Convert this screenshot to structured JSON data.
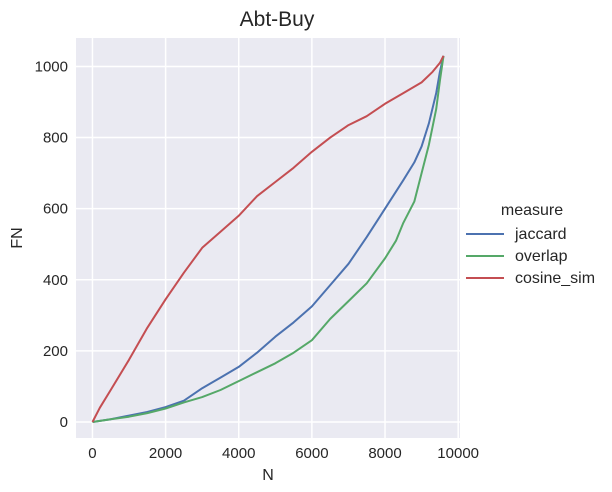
{
  "chart_data": {
    "type": "line",
    "title": "Abt-Buy",
    "xlabel": "N",
    "ylabel": "FN",
    "xlim": [
      -450,
      10050
    ],
    "ylim": [
      -45,
      1080
    ],
    "xticks": [
      0,
      2000,
      4000,
      6000,
      8000,
      10000
    ],
    "yticks": [
      0,
      200,
      400,
      600,
      800,
      1000
    ],
    "grid": true,
    "legend": {
      "title": "measure",
      "placement": "right"
    },
    "series": [
      {
        "name": "jaccard",
        "color": "#4c72b0",
        "x": [
          0,
          500,
          1000,
          1500,
          2000,
          2500,
          3000,
          3500,
          4000,
          4500,
          5000,
          5500,
          6000,
          6500,
          7000,
          7500,
          8000,
          8500,
          8800,
          9000,
          9200,
          9400,
          9500,
          9600
        ],
        "y": [
          0,
          8,
          18,
          28,
          42,
          60,
          95,
          125,
          155,
          195,
          240,
          280,
          325,
          385,
          445,
          520,
          600,
          680,
          730,
          775,
          840,
          925,
          985,
          1030
        ]
      },
      {
        "name": "overlap",
        "color": "#55a868",
        "x": [
          0,
          500,
          1000,
          1500,
          2000,
          2500,
          3000,
          3500,
          4000,
          4500,
          5000,
          5500,
          6000,
          6500,
          7000,
          7500,
          8000,
          8300,
          8500,
          8800,
          9000,
          9200,
          9400,
          9500,
          9600
        ],
        "y": [
          0,
          8,
          15,
          25,
          38,
          55,
          70,
          90,
          115,
          140,
          165,
          195,
          230,
          290,
          340,
          390,
          460,
          510,
          560,
          620,
          700,
          780,
          880,
          960,
          1030
        ]
      },
      {
        "name": "cosine_sim",
        "color": "#c44e52",
        "x": [
          0,
          200,
          500,
          1000,
          1500,
          2000,
          2500,
          3000,
          3500,
          4000,
          4500,
          5000,
          5500,
          6000,
          6500,
          7000,
          7500,
          8000,
          8500,
          9000,
          9300,
          9500,
          9600
        ],
        "y": [
          0,
          40,
          90,
          175,
          265,
          345,
          420,
          490,
          535,
          580,
          635,
          675,
          715,
          760,
          800,
          835,
          860,
          895,
          925,
          955,
          985,
          1010,
          1030
        ]
      }
    ]
  }
}
